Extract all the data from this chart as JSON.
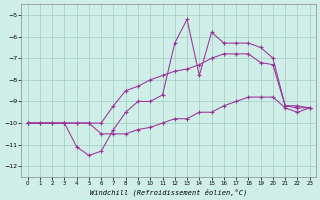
{
  "xlabel": "Windchill (Refroidissement éolien,°C)",
  "background_color": "#d0eee8",
  "grid_color": "#a0ccc0",
  "line_color": "#993399",
  "xlim": [
    -0.5,
    23.5
  ],
  "ylim": [
    -12.5,
    -4.5
  ],
  "yticks": [
    -12,
    -11,
    -10,
    -9,
    -8,
    -7,
    -6,
    -5
  ],
  "xticks": [
    0,
    1,
    2,
    3,
    4,
    5,
    6,
    7,
    8,
    9,
    10,
    11,
    12,
    13,
    14,
    15,
    16,
    17,
    18,
    19,
    20,
    21,
    22,
    23
  ],
  "line1_x": [
    0,
    3,
    4,
    5,
    6,
    7,
    8,
    9,
    10,
    11,
    12,
    13,
    14,
    15,
    16,
    17,
    18,
    19,
    20,
    21,
    22,
    23
  ],
  "line1_y": [
    -10.0,
    -10.0,
    -11.1,
    -11.5,
    -11.3,
    -10.3,
    -9.5,
    -9.0,
    -9.0,
    -8.7,
    -6.3,
    -5.2,
    -7.8,
    -5.8,
    -6.3,
    -6.3,
    -6.3,
    -6.5,
    -7.0,
    -9.2,
    -9.2,
    -9.3
  ],
  "line2_x": [
    0,
    1,
    2,
    3,
    4,
    5,
    6,
    7,
    8,
    9,
    10,
    11,
    12,
    13,
    14,
    15,
    16,
    17,
    18,
    19,
    20,
    21,
    22,
    23
  ],
  "line2_y": [
    -10.0,
    -10.0,
    -10.0,
    -10.0,
    -10.0,
    -10.0,
    -10.0,
    -9.2,
    -8.5,
    -8.3,
    -8.0,
    -7.8,
    -7.6,
    -7.5,
    -7.3,
    -7.0,
    -6.8,
    -6.8,
    -6.8,
    -7.2,
    -7.3,
    -9.2,
    -9.3,
    -9.3
  ],
  "line3_x": [
    0,
    1,
    2,
    3,
    4,
    5,
    6,
    7,
    8,
    9,
    10,
    11,
    12,
    13,
    14,
    15,
    16,
    17,
    18,
    19,
    20,
    21,
    22,
    23
  ],
  "line3_y": [
    -10.0,
    -10.0,
    -10.0,
    -10.0,
    -10.0,
    -10.0,
    -10.5,
    -10.5,
    -10.5,
    -10.3,
    -10.2,
    -10.0,
    -9.8,
    -9.8,
    -9.5,
    -9.5,
    -9.2,
    -9.0,
    -8.8,
    -8.8,
    -8.8,
    -9.3,
    -9.5,
    -9.3
  ]
}
